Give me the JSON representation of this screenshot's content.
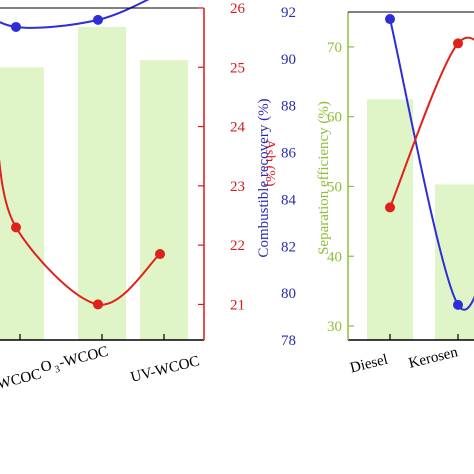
{
  "chart_data": [
    {
      "type": "bar",
      "categories": [
        "WCOC",
        "O3-WCOC",
        "UV-WCOC"
      ],
      "tick_labels": [
        "WCOC",
        "O",
        "-WCOC",
        "UV-WCOC"
      ],
      "o3_subscript": "3",
      "y2label": "Ash (%)",
      "y2ticks": [
        "26",
        "25",
        "24",
        "23",
        "22",
        "21"
      ],
      "y2lim": [
        20.4,
        26
      ],
      "bar_left_axis_values": [
        89.5,
        91.2,
        89.8
      ],
      "bar_left_axis_lim": [
        78,
        92
      ],
      "series": [
        {
          "values": [
            89.5,
            91.2,
            89.8
          ],
          "color": "#dff5c8"
        },
        {
          "values": [
            91.2,
            91.5,
            92.6
          ],
          "color": "#2d2ed8"
        },
        {
          "values": [
            22.3,
            21.0,
            21.85
          ],
          "color": "#e0201b"
        }
      ],
      "colors": {
        "right_axis": "#d7191c",
        "blue_line": "#2d2ed8",
        "red_line": "#e0201b",
        "bar": "#dff5c8"
      }
    },
    {
      "type": "bar",
      "categories": [
        "Diesel",
        "Kerosene"
      ],
      "tick_labels": [
        "Diesel",
        "Kerosen"
      ],
      "ylabel": "Combustible recovery (%)",
      "yticks": [
        "92",
        "90",
        "88",
        "86",
        "84",
        "82",
        "80",
        "78"
      ],
      "ylim": [
        78,
        92
      ],
      "y2label": "Separation efficiency (%)",
      "y2ticks": [
        "70",
        "60",
        "50",
        "40",
        "30"
      ],
      "y2lim": [
        28,
        75
      ],
      "series": [
        {
          "axis": "right",
          "values": [
            62.5,
            50.3
          ],
          "color": "#dff5c8"
        },
        {
          "axis": "left",
          "values": [
            91.7,
            79.5
          ],
          "color": "#2d2ed8"
        },
        {
          "axis": "right",
          "values": [
            47.0,
            70.5
          ],
          "color": "#e0201b"
        }
      ],
      "colors": {
        "left_axis": "#2b2bb5",
        "right_axis": "#8fbf3a",
        "blue_line": "#2d2ed8",
        "red_line": "#e0201b",
        "bar": "#dff5c8"
      }
    }
  ]
}
